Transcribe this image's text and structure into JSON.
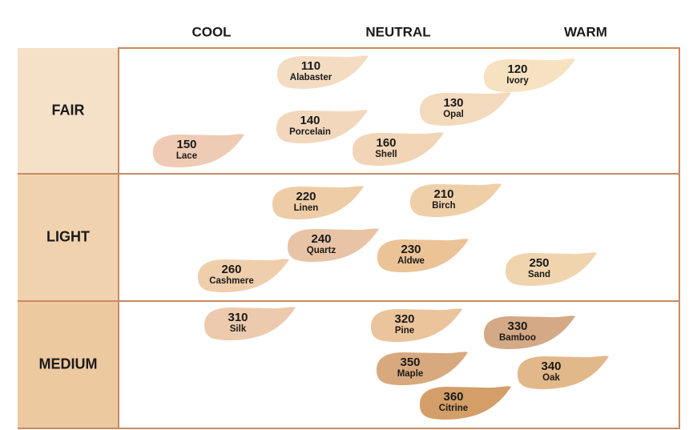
{
  "columns": [
    "COOL",
    "NEUTRAL",
    "WARM"
  ],
  "rows": [
    {
      "label": "FAIR",
      "shades": [
        {
          "code": "110",
          "name": "Alabaster",
          "color": "#f3dcc2"
        },
        {
          "code": "120",
          "name": "Ivory",
          "color": "#f6e2c0"
        },
        {
          "code": "130",
          "name": "Opal",
          "color": "#f3dabd"
        },
        {
          "code": "140",
          "name": "Porcelain",
          "color": "#f2d7bc"
        },
        {
          "code": "150",
          "name": "Lace",
          "color": "#efcab4"
        },
        {
          "code": "160",
          "name": "Shell",
          "color": "#f1d5b6"
        }
      ]
    },
    {
      "label": "LIGHT",
      "shades": [
        {
          "code": "220",
          "name": "Linen",
          "color": "#eecda6"
        },
        {
          "code": "210",
          "name": "Birch",
          "color": "#eecfa7"
        },
        {
          "code": "240",
          "name": "Quartz",
          "color": "#e8c3a5"
        },
        {
          "code": "230",
          "name": "Aldwe",
          "color": "#ecc396"
        },
        {
          "code": "260",
          "name": "Cashmere",
          "color": "#efceac"
        },
        {
          "code": "250",
          "name": "Sand",
          "color": "#f0d4ad"
        }
      ]
    },
    {
      "label": "MEDIUM",
      "shades": [
        {
          "code": "310",
          "name": "Silk",
          "color": "#edcaad"
        },
        {
          "code": "320",
          "name": "Pine",
          "color": "#ebc49b"
        },
        {
          "code": "330",
          "name": "Bamboo",
          "color": "#d4a985"
        },
        {
          "code": "350",
          "name": "Maple",
          "color": "#d8a97e"
        },
        {
          "code": "340",
          "name": "Oak",
          "color": "#e1b889"
        },
        {
          "code": "360",
          "name": "Citrine",
          "color": "#d49e68"
        }
      ]
    }
  ]
}
